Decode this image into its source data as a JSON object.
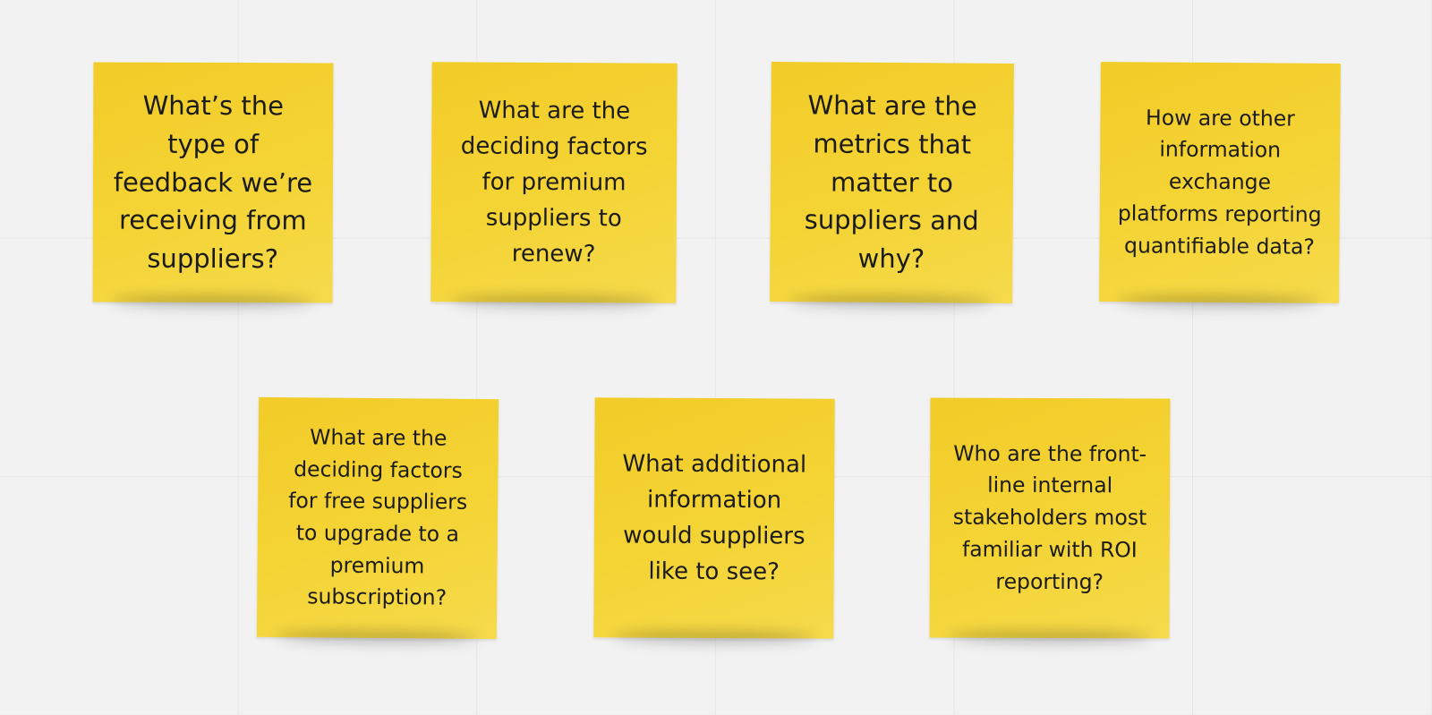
{
  "board": {
    "notes": [
      {
        "text": "What’s the type of feedback we’re receiving from suppliers?",
        "color": "#f4d435"
      },
      {
        "text": "What are the deciding factors for premium suppliers to renew?",
        "color": "#f4d435"
      },
      {
        "text": "What are the metrics that matter to suppliers and why?",
        "color": "#f4d435"
      },
      {
        "text": "How are other information exchange platforms reporting quantifiable data?",
        "color": "#f4d435"
      },
      {
        "text": "What are the deciding factors for free suppliers to upgrade to a premium subscription?",
        "color": "#f4d435"
      },
      {
        "text": "What additional information would suppliers like to see?",
        "color": "#f4d435"
      },
      {
        "text": "Who are the front-line internal stakeholders most familiar with ROI reporting?",
        "color": "#f4d435"
      }
    ]
  }
}
